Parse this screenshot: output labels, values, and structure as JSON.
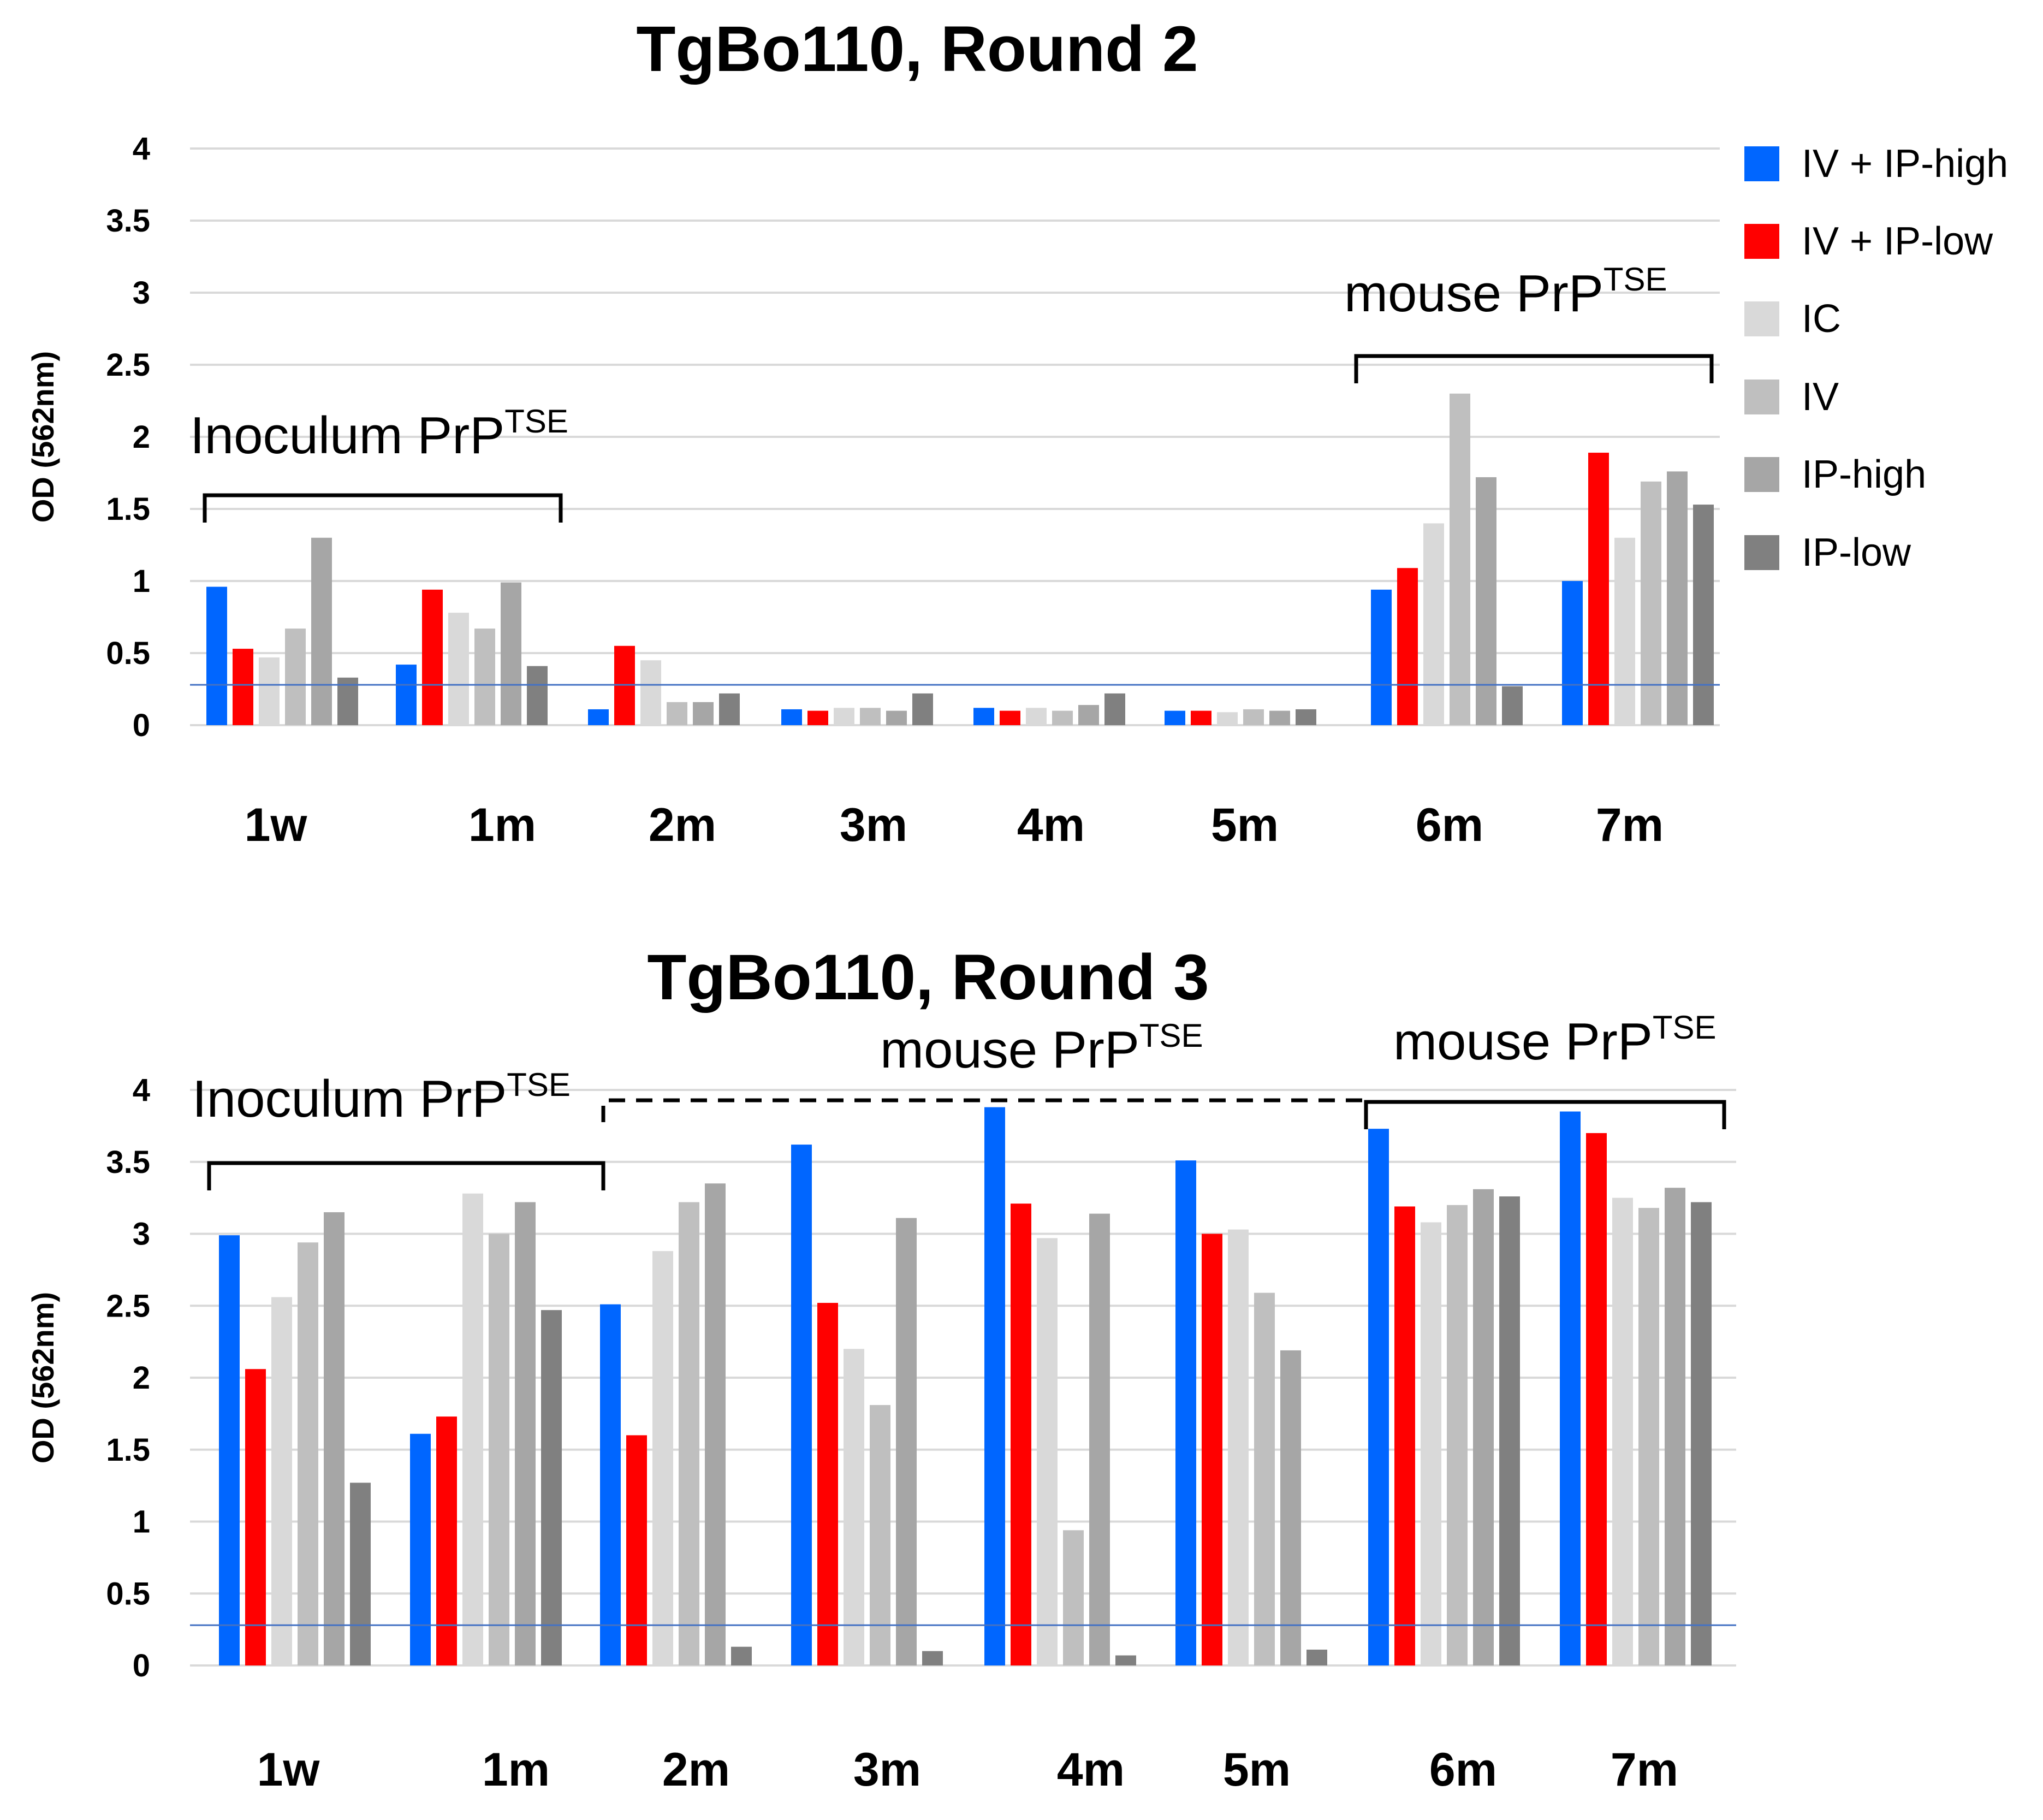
{
  "legend": [
    {
      "label": "IV + IP-high",
      "color": "#0066ff"
    },
    {
      "label": "IV + IP-low",
      "color": "#ff0000"
    },
    {
      "label": "IC",
      "color": "#d9d9d9"
    },
    {
      "label": "IV",
      "color": "#bfbfbf"
    },
    {
      "label": "IP-high",
      "color": "#a6a6a6"
    },
    {
      "label": "IP-low",
      "color": "#808080"
    }
  ],
  "threshold_color": "#4472c4",
  "chart_data": [
    {
      "type": "bar",
      "title": "TgBo110, Round 2",
      "ylabel": "OD (562nm)",
      "xlabel": "",
      "ylim": [
        0,
        4
      ],
      "yticks": [
        "0",
        "0.5",
        "1",
        "1.5",
        "2",
        "2.5",
        "3",
        "3.5",
        "4"
      ],
      "categories": [
        "1w",
        "1m",
        "2m",
        "3m",
        "4m",
        "5m",
        "6m",
        "7m"
      ],
      "threshold": 0.28,
      "series": [
        {
          "name": "IV + IP-high",
          "values": [
            0.96,
            0.42,
            0.11,
            0.11,
            0.12,
            0.1,
            0.94,
            1.0
          ]
        },
        {
          "name": "IV + IP-low",
          "values": [
            0.53,
            0.94,
            0.55,
            0.1,
            0.1,
            0.1,
            1.09,
            1.89
          ]
        },
        {
          "name": "IC",
          "values": [
            0.47,
            0.78,
            0.45,
            0.12,
            0.12,
            0.09,
            1.4,
            1.3
          ]
        },
        {
          "name": "IV",
          "values": [
            0.67,
            0.67,
            0.16,
            0.12,
            0.1,
            0.11,
            2.3,
            1.69
          ]
        },
        {
          "name": "IP-high",
          "values": [
            1.3,
            0.99,
            0.16,
            0.1,
            0.14,
            0.1,
            1.72,
            1.76
          ]
        },
        {
          "name": "IP-low",
          "values": [
            0.33,
            0.41,
            0.22,
            0.22,
            0.22,
            0.11,
            0.27,
            1.53
          ]
        }
      ],
      "annotations": [
        {
          "main": "Inoculum PrP",
          "sup": "TSE",
          "bracket": "solid",
          "span": [
            "1w",
            "1m"
          ]
        },
        {
          "main": "mouse PrP",
          "sup": "TSE",
          "bracket": "solid",
          "span": [
            "6m",
            "7m"
          ]
        }
      ]
    },
    {
      "type": "bar",
      "title": "TgBo110, Round 3",
      "ylabel": "OD (562nm)",
      "xlabel": "",
      "ylim": [
        0,
        4
      ],
      "yticks": [
        "0",
        "0.5",
        "1",
        "1.5",
        "2",
        "2.5",
        "3",
        "3.5",
        "4"
      ],
      "categories": [
        "1w",
        "1m",
        "2m",
        "3m",
        "4m",
        "5m",
        "6m",
        "7m"
      ],
      "threshold": 0.28,
      "series": [
        {
          "name": "IV + IP-high",
          "values": [
            2.99,
            1.61,
            2.51,
            3.62,
            3.88,
            3.51,
            3.73,
            3.85
          ]
        },
        {
          "name": "IV + IP-low",
          "values": [
            2.06,
            1.73,
            1.6,
            2.52,
            3.21,
            3.0,
            3.19,
            3.7
          ]
        },
        {
          "name": "IC",
          "values": [
            2.56,
            3.28,
            2.88,
            2.2,
            2.97,
            3.03,
            3.08,
            3.25
          ]
        },
        {
          "name": "IV",
          "values": [
            2.94,
            3.0,
            3.22,
            1.81,
            0.94,
            2.59,
            3.2,
            3.18
          ]
        },
        {
          "name": "IP-high",
          "values": [
            3.15,
            3.22,
            3.35,
            3.11,
            3.14,
            2.19,
            3.31,
            3.32
          ]
        },
        {
          "name": "IP-low",
          "values": [
            1.27,
            2.47,
            0.13,
            0.1,
            0.07,
            0.11,
            3.26,
            3.22
          ]
        }
      ],
      "annotations": [
        {
          "main": "Inoculum PrP",
          "sup": "TSE",
          "bracket": "solid",
          "span": [
            "1w",
            "1m"
          ]
        },
        {
          "main": "mouse PrP",
          "sup": "TSE",
          "bracket": "dashed",
          "span": [
            "2m",
            "5m"
          ]
        },
        {
          "main": "mouse PrP",
          "sup": "TSE",
          "bracket": "solid",
          "span": [
            "6m",
            "7m"
          ]
        }
      ]
    }
  ]
}
